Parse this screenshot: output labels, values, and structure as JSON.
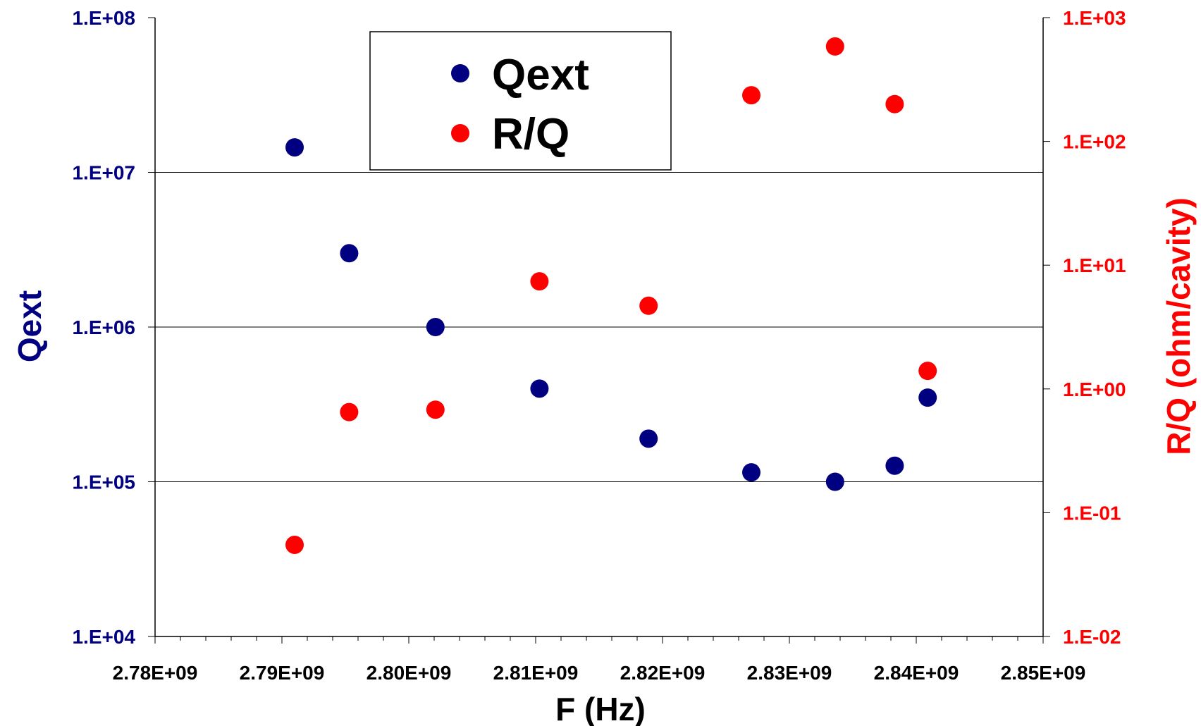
{
  "chart_data": {
    "type": "scatter",
    "xlabel": "F (Hz)",
    "ylabel_left": "Qext",
    "ylabel_right": "R/Q (ohm/cavity)",
    "xlim": [
      2780000000,
      2850000000
    ],
    "x_tick_labels": [
      "2.78E+09",
      "2.79E+09",
      "2.80E+09",
      "2.81E+09",
      "2.82E+09",
      "2.83E+09",
      "2.84E+09",
      "2.85E+09"
    ],
    "y_left": {
      "scale": "log",
      "range": [
        10000,
        100000000
      ],
      "tick_labels": [
        "1.E+04",
        "1.E+05",
        "1.E+06",
        "1.E+07",
        "1.E+08"
      ]
    },
    "y_right": {
      "scale": "log",
      "range": [
        0.01,
        1000
      ],
      "tick_labels": [
        "1.E-02",
        "1.E-01",
        "1.E+00",
        "1.E+01",
        "1.E+02",
        "1.E+03"
      ]
    },
    "grid": "horizontal at left-axis decades",
    "legend": {
      "placement": "top-center"
    },
    "colors": {
      "qext": "#000080",
      "rq": "#ff0000",
      "left_axis": "#000080",
      "right_axis": "#ff0000"
    },
    "series": [
      {
        "name": "Qext",
        "axis": "left",
        "x": [
          2791000000,
          2795300000,
          2802100000,
          2810300000,
          2818900000,
          2827000000,
          2833600000,
          2838300000,
          2840900000
        ],
        "y": [
          14500000,
          3000000,
          1000000,
          400000,
          190000,
          115000,
          100000,
          127000,
          350000
        ]
      },
      {
        "name": "R/Q",
        "axis": "right",
        "x": [
          2791000000,
          2795300000,
          2802100000,
          2810300000,
          2818900000,
          2827000000,
          2833600000,
          2838300000,
          2840900000
        ],
        "y": [
          0.055,
          0.65,
          0.68,
          7.4,
          4.7,
          236,
          585,
          200,
          1.4
        ]
      }
    ]
  }
}
